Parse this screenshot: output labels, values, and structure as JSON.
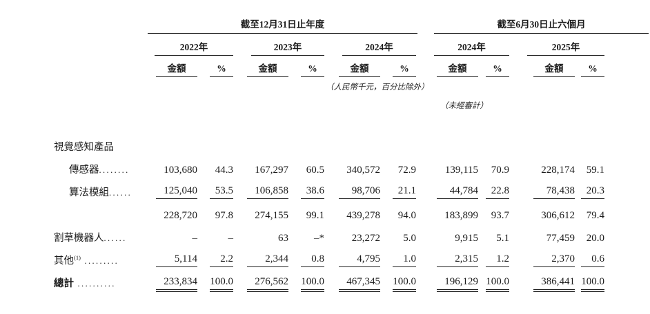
{
  "table": {
    "groups": [
      {
        "title": "截至12月31日止年度",
        "years": [
          "2022年",
          "2023年",
          "2024年"
        ]
      },
      {
        "title": "截至6月30日止六個月",
        "years": [
          "2024年",
          "2025年"
        ]
      }
    ],
    "sub_headers": {
      "amount": "金額",
      "percent": "%"
    },
    "notes": {
      "currency": "（人民幣千元，百分比除外）",
      "unaudited": "（未經審計）"
    },
    "rows": [
      {
        "type": "category",
        "label": "視覺感知產品",
        "sup": "",
        "leader": "",
        "rule": "none",
        "values": []
      },
      {
        "type": "item",
        "label": "傳感器",
        "sup": "",
        "leader": "........",
        "rule": "none",
        "values": [
          "103,680",
          "44.3",
          "167,297",
          "60.5",
          "340,572",
          "72.9",
          "139,115",
          "70.9",
          "228,174",
          "59.1"
        ]
      },
      {
        "type": "item",
        "label": "算法模組",
        "sup": "",
        "leader": "......",
        "rule": "single",
        "values": [
          "125,040",
          "53.5",
          "106,858",
          "38.6",
          "98,706",
          "21.1",
          "44,784",
          "22.8",
          "78,438",
          "20.3"
        ]
      },
      {
        "type": "subtotal",
        "label": "",
        "sup": "",
        "leader": "",
        "rule": "none",
        "values": [
          "228,720",
          "97.8",
          "274,155",
          "99.1",
          "439,278",
          "94.0",
          "183,899",
          "93.7",
          "306,612",
          "79.4"
        ]
      },
      {
        "type": "plain",
        "label": "割草機器人",
        "sup": "",
        "leader": "......",
        "rule": "none",
        "values": [
          "–",
          "–",
          "63",
          "–*",
          "23,272",
          "5.0",
          "9,915",
          "5.1",
          "77,459",
          "20.0"
        ]
      },
      {
        "type": "plain",
        "label": "其他",
        "sup": "(1)",
        "leader": " .........",
        "rule": "single",
        "values": [
          "5,114",
          "2.2",
          "2,344",
          "0.8",
          "4,795",
          "1.0",
          "2,315",
          "1.2",
          "2,370",
          "0.6"
        ]
      },
      {
        "type": "total",
        "label": "總計",
        "sup": "",
        "leader": " ..........",
        "rule": "double",
        "values": [
          "233,834",
          "100.0",
          "276,562",
          "100.0",
          "467,345",
          "100.0",
          "196,129",
          "100.0",
          "386,441",
          "100.0"
        ]
      }
    ]
  }
}
